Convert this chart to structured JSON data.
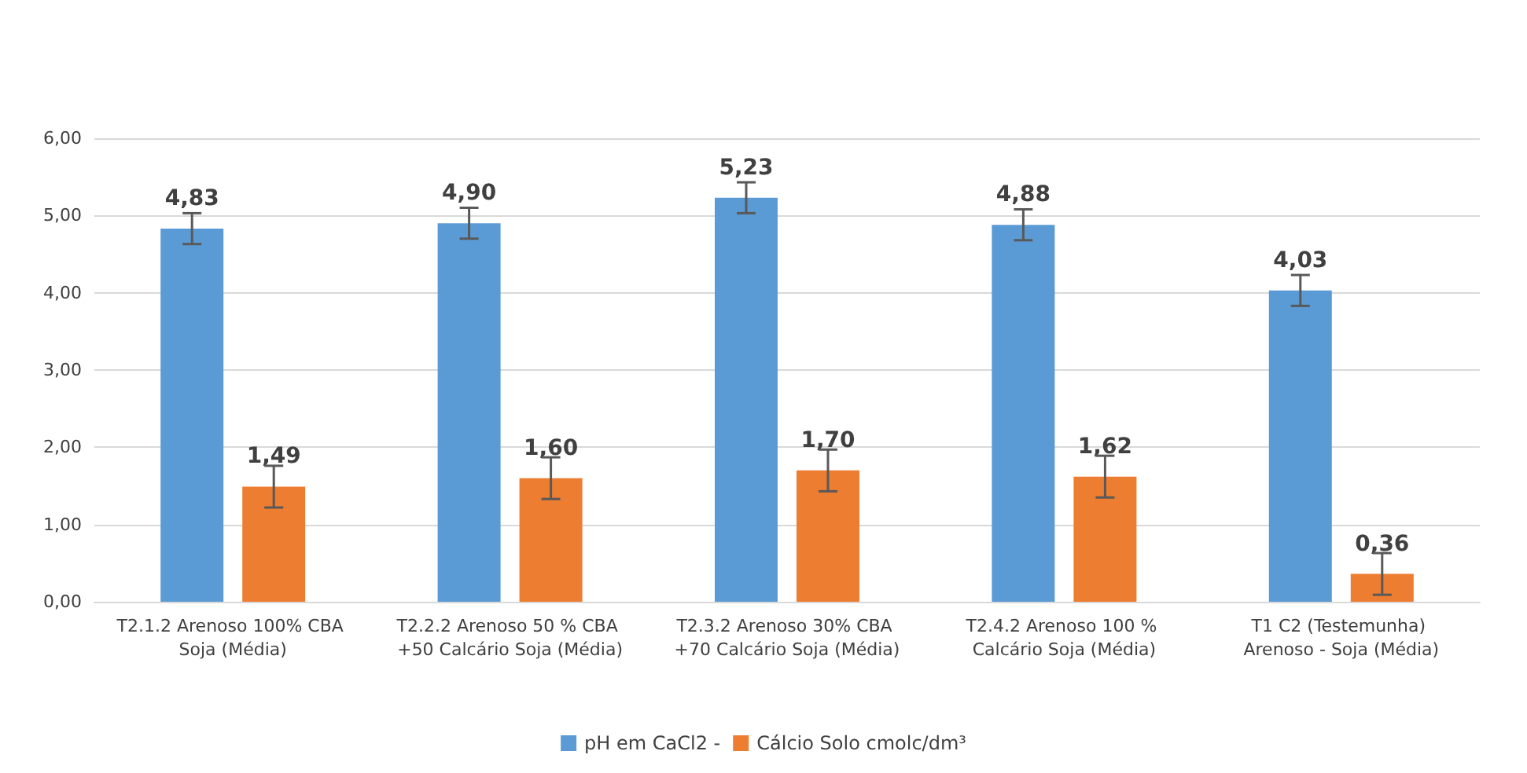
{
  "chart_data": {
    "type": "bar",
    "categories": [
      "T2.1.2 Arenoso 100% CBA Soja (Média)",
      "T2.2.2 Arenoso 50 % CBA +50 Calcário Soja (Média)",
      "T2.3.2 Arenoso 30% CBA +70 Calcário Soja (Média)",
      "T2.4.2 Arenoso 100 % Calcário Soja (Média)",
      "T1 C2 (Testemunha) Arenoso - Soja (Média)"
    ],
    "series": [
      {
        "name": "pH em CaCl2 -",
        "color": "#5b9bd5",
        "values": [
          4.83,
          4.9,
          5.23,
          4.88,
          4.03
        ],
        "value_labels": [
          "4,83",
          "4,90",
          "5,23",
          "4,88",
          "4,03"
        ],
        "errors": [
          0.2,
          0.2,
          0.2,
          0.2,
          0.2
        ]
      },
      {
        "name": "Cálcio Solo cmolc/dm³",
        "color": "#ed7d31",
        "values": [
          1.49,
          1.6,
          1.7,
          1.62,
          0.36
        ],
        "value_labels": [
          "1,49",
          "1,60",
          "1,70",
          "1,62",
          "0,36"
        ],
        "errors": [
          0.27,
          0.27,
          0.27,
          0.27,
          0.27
        ]
      }
    ],
    "ylim": [
      0,
      6
    ],
    "yticks": [
      {
        "value": 0,
        "label": "0,00"
      },
      {
        "value": 1,
        "label": "1,00"
      },
      {
        "value": 2,
        "label": "2,00"
      },
      {
        "value": 3,
        "label": "3,00"
      },
      {
        "value": 4,
        "label": "4,00"
      },
      {
        "value": 5,
        "label": "5,00"
      },
      {
        "value": 6,
        "label": "6,00"
      }
    ],
    "grid": "y",
    "legend": "bottom"
  }
}
